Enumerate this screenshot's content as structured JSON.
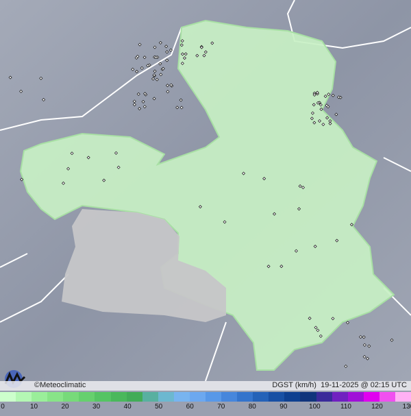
{
  "credit": "©Meteoclimatic",
  "variable_label": "DGST (km/h)",
  "timestamp": "19-11-2025 @ 02:15 UTC",
  "legend": {
    "ticks": [
      "0",
      "10",
      "20",
      "30",
      "40",
      "50",
      "60",
      "70",
      "80",
      "90",
      "100",
      "110",
      "120",
      "130"
    ],
    "colors": [
      "#ccffcc",
      "#b4f7b4",
      "#9aee9a",
      "#88e488",
      "#77da7a",
      "#66d06e",
      "#55c464",
      "#4ab85c",
      "#42ac58",
      "#58b0a0",
      "#6cb8d0",
      "#78b4f0",
      "#6ca8f0",
      "#5898e8",
      "#4686dc",
      "#3474cc",
      "#2462b8",
      "#1850a4",
      "#0e4090",
      "#10347c",
      "#3a2a9a",
      "#7020c0",
      "#a010d8",
      "#e000f0",
      "#f050f0",
      "#ffb0f4"
    ]
  },
  "colors": {
    "region_fill": "#c8f0c4",
    "no_data_fill": "#c8c8c8",
    "terrain": "#9aa0b0",
    "borders": "#ffffff",
    "station_marker": "#222222"
  }
}
